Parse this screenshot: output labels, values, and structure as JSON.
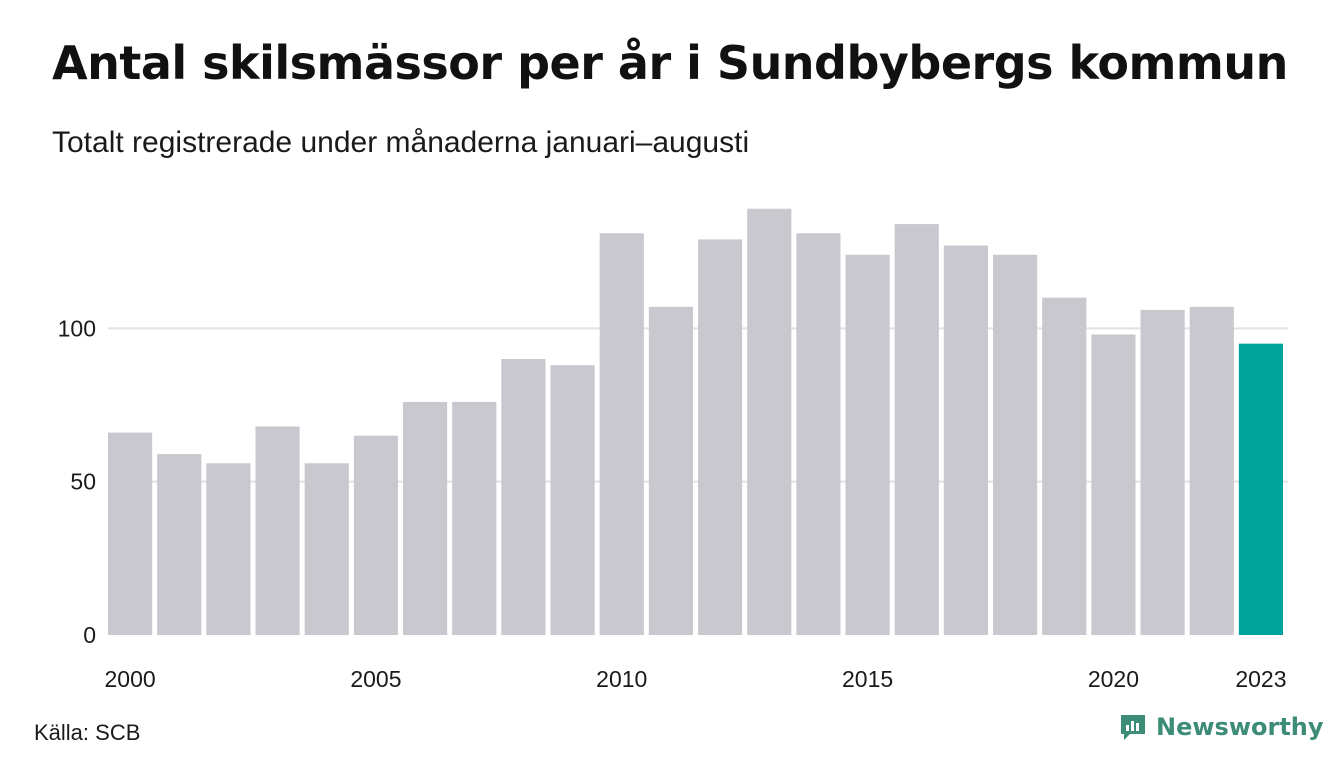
{
  "chart_data": {
    "type": "bar",
    "title": "Antal skilsmässor per år i Sundbybergs kommun",
    "subtitle": "Totalt registrerade under månaderna januari–augusti",
    "categories": [
      "2000",
      "2001",
      "2002",
      "2003",
      "2004",
      "2005",
      "2006",
      "2007",
      "2008",
      "2009",
      "2010",
      "2011",
      "2012",
      "2013",
      "2014",
      "2015",
      "2016",
      "2017",
      "2018",
      "2019",
      "2020",
      "2021",
      "2022",
      "2023"
    ],
    "values": [
      66,
      59,
      56,
      68,
      56,
      65,
      76,
      76,
      90,
      88,
      131,
      107,
      129,
      139,
      131,
      124,
      134,
      127,
      124,
      110,
      98,
      106,
      107,
      95
    ],
    "x_tick_labels": [
      "2000",
      "2005",
      "2010",
      "2015",
      "2020",
      "2023"
    ],
    "y_ticks": [
      0,
      50,
      100
    ],
    "ylim": [
      0,
      150
    ],
    "grid": true,
    "colors": {
      "bar": "#c9c8cf",
      "highlight": "#00a49a",
      "grid": "#e2e2e2"
    },
    "highlight_category": "2023"
  },
  "footer": {
    "source": "Källa: SCB",
    "brand": "Newsworthy",
    "brand_icon": "newsworthy-logo-icon"
  }
}
